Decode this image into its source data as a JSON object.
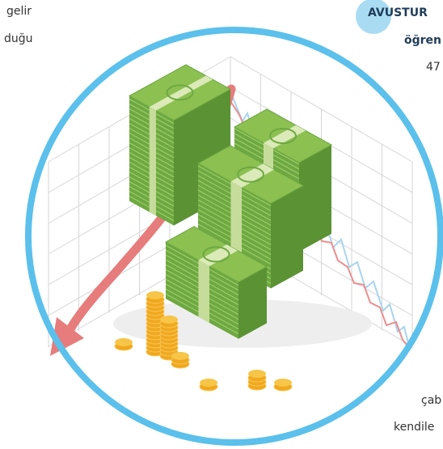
{
  "texts": {
    "left_line1": "gelir",
    "left_line2": "duğu",
    "heading": "AVUSTUR",
    "subheading": "öğren",
    "number_text": "47",
    "bottom_line1": "çab",
    "bottom_line2": "kendile"
  }
}
